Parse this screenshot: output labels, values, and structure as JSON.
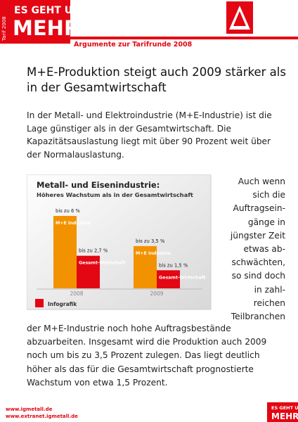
{
  "header": {
    "brand_top": "ES GEHT UM",
    "brand_main": "MEHR",
    "brand_side": "Tarif 2008",
    "subtitle": "Argumente zur Tarifrunde 2008"
  },
  "article": {
    "heading": "M+E-Produktion steigt auch 2009 stärker als in der Gesamtwirtschaft",
    "intro": "In der Metall- und Elektroindustrie (M+E-Industrie) ist die Lage günstiger als in der Gesamtwirtschaft. Die Kapazitätsauslastung liegt mit über 90 Prozent weit über der Normalauslastung.",
    "side_lines": [
      "Auch wenn",
      "sich die",
      "Auftragsein-",
      "gänge in",
      "jüngster Zeit",
      "etwas ab-",
      "schwächten,",
      "so sind doch",
      "in zahl-",
      "reichen",
      "Teilbranchen"
    ],
    "continuation": "der M+E-Industrie noch hohe Auftragsbestände abzuarbeiten. Insgesamt wird die Produktion auch 2009 noch um bis zu 3,5 Prozent zulegen. Das liegt deutlich höher als das für die Gesamtwirtschaft prognostierte Wachstum von etwa 1,5 Prozent."
  },
  "chart_data": {
    "type": "bar",
    "title": "Metall- und Eisenindustrie:",
    "subtitle": "Höheres Wachstum als in der Gesamtwirtschaft",
    "categories": [
      "2008",
      "2009"
    ],
    "series": [
      {
        "name": "M+E Industrie",
        "color": "#f39200",
        "values": [
          6,
          3.5
        ],
        "value_labels": [
          "bis zu 6 %",
          "bis zu 3,5 %"
        ]
      },
      {
        "name": "Gesamt-Wirtschaft",
        "color": "#e30613",
        "values": [
          2.7,
          1.5
        ],
        "value_labels": [
          "bis zu 2,7 %",
          "bis zu 1,5 %"
        ]
      }
    ],
    "source": "Infografik"
  },
  "footer": {
    "links": [
      "www.igmetall.de",
      "www.extranet.igmetall.de"
    ],
    "badge_top": "ES GEHT UM",
    "badge_main": "MEHR"
  }
}
